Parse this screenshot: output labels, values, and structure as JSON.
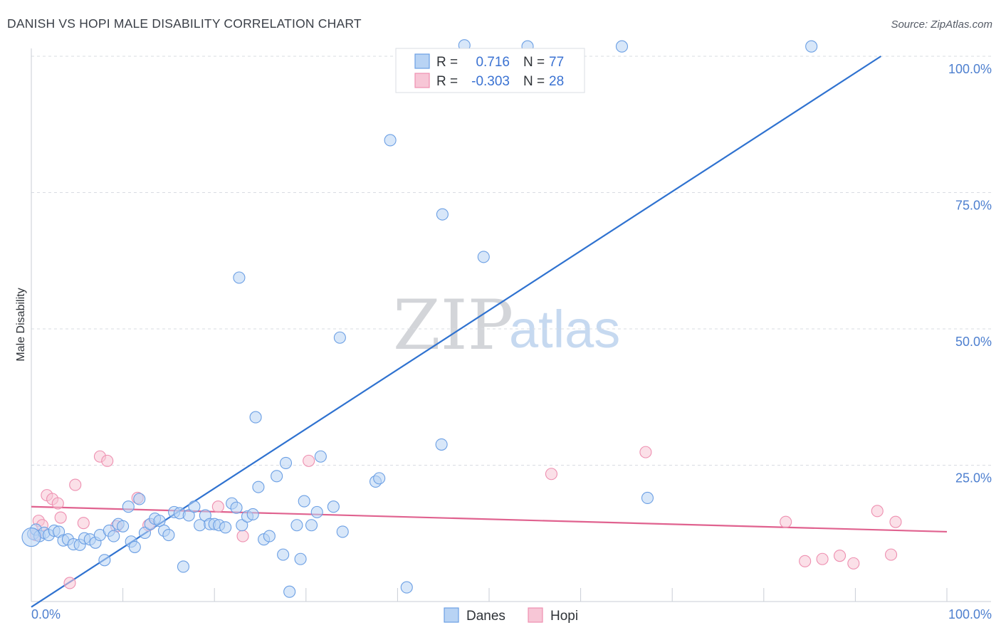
{
  "colors": {
    "danes": "#6b9fe4",
    "danes_fill": "#b8d3f4",
    "danes_line": "#2f72d0",
    "hopi": "#ee8fb0",
    "hopi_fill": "#f7c6d6",
    "hopi_line": "#e0628f",
    "tick": "#4d7fcf"
  },
  "header": {
    "title": "DANISH VS HOPI MALE DISABILITY CORRELATION CHART",
    "source": "Source: ZipAtlas.com"
  },
  "watermark": {
    "zip": "ZIP",
    "atlas": "atlas"
  },
  "legend": {
    "danes": {
      "r_label": "R =",
      "r_value": "0.716",
      "n_label": "N =",
      "n_value": "77"
    },
    "hopi": {
      "r_label": "R =",
      "r_value": "-0.303",
      "n_label": "N =",
      "n_value": "28"
    }
  },
  "bottom_legend": {
    "danes": "Danes",
    "hopi": "Hopi"
  },
  "chart_data": {
    "type": "scatter",
    "title": "DANISH VS HOPI MALE DISABILITY CORRELATION CHART",
    "xlabel": "",
    "ylabel": "Male Disability",
    "xlim": [
      0,
      100
    ],
    "ylim": [
      0,
      100
    ],
    "x_tick_labels": [
      "0.0%",
      "100.0%"
    ],
    "y_ticks": [
      25,
      50,
      75,
      100
    ],
    "y_tick_labels": [
      "25.0%",
      "50.0%",
      "75.0%",
      "100.0%"
    ],
    "legend_position": "top-center",
    "series": [
      {
        "name": "Danes",
        "r": 0.716,
        "n": 77,
        "trend": {
          "x": [
            0,
            92.8
          ],
          "y": [
            -1,
            100
          ]
        },
        "points": [
          [
            0.2,
            12.4
          ],
          [
            0.5,
            13.2
          ],
          [
            0.9,
            12.0
          ],
          [
            1.4,
            12.6
          ],
          [
            1.9,
            12.2
          ],
          [
            2.5,
            13.0
          ],
          [
            3.0,
            12.8
          ],
          [
            3.5,
            11.2
          ],
          [
            4.0,
            11.4
          ],
          [
            4.6,
            10.5
          ],
          [
            5.3,
            10.4
          ],
          [
            5.8,
            11.6
          ],
          [
            6.4,
            11.4
          ],
          [
            7.0,
            10.8
          ],
          [
            7.5,
            12.2
          ],
          [
            8.0,
            7.6
          ],
          [
            8.5,
            13.0
          ],
          [
            9.0,
            12.0
          ],
          [
            9.5,
            14.2
          ],
          [
            10.0,
            13.8
          ],
          [
            10.6,
            17.4
          ],
          [
            10.9,
            11.0
          ],
          [
            11.3,
            10.0
          ],
          [
            11.8,
            18.8
          ],
          [
            12.4,
            12.6
          ],
          [
            13.0,
            14.2
          ],
          [
            13.5,
            15.2
          ],
          [
            14.0,
            14.8
          ],
          [
            14.5,
            13.0
          ],
          [
            15.0,
            12.2
          ],
          [
            15.6,
            16.4
          ],
          [
            16.2,
            16.2
          ],
          [
            16.6,
            6.4
          ],
          [
            17.2,
            15.8
          ],
          [
            17.8,
            17.4
          ],
          [
            18.4,
            14.0
          ],
          [
            19.0,
            15.8
          ],
          [
            19.5,
            14.2
          ],
          [
            20.0,
            14.2
          ],
          [
            20.5,
            14.0
          ],
          [
            21.2,
            13.6
          ],
          [
            21.9,
            18.0
          ],
          [
            22.4,
            17.2
          ],
          [
            23.0,
            14.0
          ],
          [
            23.6,
            15.6
          ],
          [
            24.2,
            16.0
          ],
          [
            22.7,
            59.4
          ],
          [
            24.5,
            33.8
          ],
          [
            24.8,
            21.0
          ],
          [
            25.4,
            11.4
          ],
          [
            26.0,
            12.0
          ],
          [
            26.8,
            23.0
          ],
          [
            27.5,
            8.6
          ],
          [
            27.8,
            25.4
          ],
          [
            28.2,
            1.8
          ],
          [
            29.0,
            14.0
          ],
          [
            29.4,
            7.8
          ],
          [
            29.8,
            18.4
          ],
          [
            30.6,
            14.0
          ],
          [
            31.2,
            16.4
          ],
          [
            31.6,
            26.6
          ],
          [
            33.0,
            17.4
          ],
          [
            34.0,
            12.8
          ],
          [
            33.7,
            48.4
          ],
          [
            37.6,
            22.0
          ],
          [
            38.0,
            22.6
          ],
          [
            39.2,
            84.6
          ],
          [
            41.0,
            2.6
          ],
          [
            44.9,
            71.0
          ],
          [
            44.8,
            28.8
          ],
          [
            47.3,
            102.0
          ],
          [
            49.4,
            63.2
          ],
          [
            54.2,
            101.8
          ],
          [
            67.3,
            19.0
          ],
          [
            64.5,
            101.8
          ],
          [
            85.2,
            101.8
          ],
          [
            0.0,
            11.8
          ]
        ]
      },
      {
        "name": "Hopi",
        "r": -0.303,
        "n": 28,
        "trend": {
          "x": [
            0,
            100
          ],
          "y": [
            17.4,
            12.8
          ]
        },
        "points": [
          [
            0.5,
            12.2
          ],
          [
            0.8,
            14.8
          ],
          [
            1.2,
            14.0
          ],
          [
            1.7,
            19.5
          ],
          [
            2.3,
            18.8
          ],
          [
            2.9,
            18.0
          ],
          [
            3.2,
            15.4
          ],
          [
            4.2,
            3.4
          ],
          [
            4.8,
            21.4
          ],
          [
            5.7,
            14.4
          ],
          [
            7.5,
            26.6
          ],
          [
            8.3,
            25.8
          ],
          [
            9.3,
            13.8
          ],
          [
            11.6,
            19.0
          ],
          [
            12.8,
            14.0
          ],
          [
            20.4,
            17.4
          ],
          [
            23.1,
            12.0
          ],
          [
            30.3,
            25.8
          ],
          [
            56.8,
            23.4
          ],
          [
            67.1,
            27.4
          ],
          [
            82.4,
            14.6
          ],
          [
            84.5,
            7.4
          ],
          [
            86.4,
            7.8
          ],
          [
            88.3,
            8.4
          ],
          [
            89.8,
            7.0
          ],
          [
            92.4,
            16.6
          ],
          [
            93.9,
            8.6
          ],
          [
            94.4,
            14.6
          ]
        ]
      }
    ]
  }
}
